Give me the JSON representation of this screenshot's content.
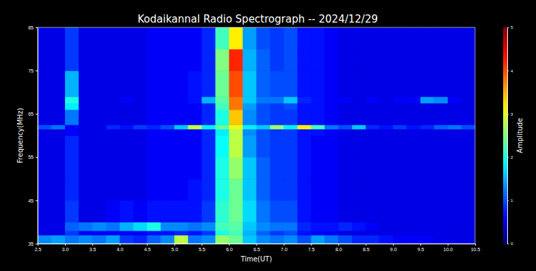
{
  "chart_data": {
    "type": "heatmap",
    "title": "Kodaikannal Radio Spectrograph -- 2024/12/29",
    "x_label": "Time(UT)",
    "y_label": "Frequency(MHz)",
    "xlim": [
      2.5,
      10.5
    ],
    "ylim": [
      35,
      85
    ],
    "xticks": [
      2.5,
      {
        "value": 3,
        "label": "3.0"
      },
      3.5,
      {
        "value": 4,
        "label": "4.0"
      },
      4.5,
      {
        "value": 5,
        "label": "5.0"
      },
      5.5,
      {
        "value": 6,
        "label": "6.0"
      },
      6.5,
      {
        "value": 7,
        "label": "7.0"
      },
      7.5,
      {
        "value": 8,
        "label": "8.0"
      },
      8.5,
      {
        "value": 9,
        "label": "9.0"
      },
      9.5,
      {
        "value": 10,
        "label": "10.0"
      },
      10.5
    ],
    "yticks": [
      35,
      45,
      55,
      65,
      75,
      85
    ],
    "x": [
      2.5,
      2.75,
      3.0,
      3.25,
      3.5,
      3.75,
      4.0,
      4.25,
      4.5,
      4.75,
      5.0,
      5.25,
      5.5,
      5.75,
      6.0,
      6.25,
      6.5,
      6.75,
      7.0,
      7.25,
      7.5,
      7.75,
      8.0,
      8.25,
      8.5,
      8.75,
      9.0,
      9.25,
      9.5,
      9.75,
      10.0,
      10.25,
      10.5
    ],
    "y": [
      35,
      37,
      38,
      40,
      45,
      50,
      55,
      60,
      61.5,
      62.5,
      66,
      67.5,
      69,
      75,
      80,
      85
    ],
    "values": [
      [
        1.3,
        1.4,
        1.2,
        1.3,
        1.2,
        1.4,
        0.9,
        0.8,
        1.1,
        1.3,
        2.8,
        1.2,
        1.3,
        2.6,
        2.4,
        1.6,
        1.3,
        1.2,
        1.3,
        1.0,
        1.4,
        1.2,
        1.0,
        0.8,
        0.8,
        0.7,
        0.6,
        0.6,
        0.6,
        0.5,
        0.5,
        0.5
      ],
      [
        0.5,
        0.5,
        0.9,
        0.6,
        0.6,
        0.6,
        0.6,
        0.6,
        0.7,
        0.7,
        0.8,
        0.7,
        0.9,
        2.0,
        2.2,
        1.5,
        1.1,
        0.9,
        1.0,
        0.7,
        0.6,
        0.6,
        0.5,
        0.5,
        0.5,
        0.5,
        0.5,
        0.5,
        0.5,
        0.5,
        0.5,
        0.5
      ],
      [
        0.5,
        0.5,
        1.1,
        1.2,
        1.3,
        1.2,
        1.5,
        1.7,
        2.0,
        1.3,
        1.3,
        1.2,
        1.3,
        2.2,
        2.3,
        1.6,
        1.3,
        1.2,
        1.2,
        0.8,
        0.7,
        0.7,
        0.8,
        0.7,
        0.6,
        0.5,
        0.5,
        0.5,
        0.5,
        0.5,
        0.5,
        0.5
      ],
      [
        0.5,
        0.5,
        0.9,
        0.5,
        0.5,
        0.6,
        0.7,
        0.6,
        0.7,
        0.7,
        0.7,
        0.7,
        0.9,
        2.1,
        2.4,
        1.7,
        1.2,
        1.0,
        1.0,
        0.7,
        0.6,
        0.6,
        0.5,
        0.5,
        0.5,
        0.5,
        0.5,
        0.5,
        0.5,
        0.5,
        0.5,
        0.5
      ],
      [
        0.5,
        0.5,
        0.8,
        0.5,
        0.5,
        0.5,
        0.5,
        0.5,
        0.6,
        0.6,
        0.6,
        0.7,
        0.8,
        2.0,
        2.4,
        1.6,
        1.1,
        0.9,
        0.9,
        0.7,
        0.6,
        0.6,
        0.5,
        0.5,
        0.5,
        0.5,
        0.5,
        0.5,
        0.5,
        0.5,
        0.5,
        0.5
      ],
      [
        0.5,
        0.5,
        0.8,
        0.5,
        0.5,
        0.5,
        0.5,
        0.5,
        0.6,
        0.6,
        0.6,
        0.6,
        0.8,
        2.0,
        2.6,
        1.6,
        1.1,
        0.9,
        0.9,
        0.7,
        0.6,
        0.6,
        0.5,
        0.5,
        0.5,
        0.5,
        0.5,
        0.5,
        0.5,
        0.5,
        0.5,
        0.5
      ],
      [
        0.5,
        0.5,
        0.8,
        0.5,
        0.5,
        0.5,
        0.5,
        0.5,
        0.6,
        0.6,
        0.6,
        0.6,
        0.8,
        1.9,
        2.8,
        1.4,
        1.0,
        0.9,
        0.9,
        0.7,
        0.6,
        0.6,
        0.5,
        0.5,
        0.5,
        0.5,
        0.5,
        0.5,
        0.5,
        0.5,
        0.5,
        0.5
      ],
      [
        0.5,
        0.5,
        0.6,
        0.5,
        0.5,
        0.5,
        0.5,
        0.5,
        0.6,
        0.6,
        0.6,
        0.6,
        0.8,
        1.8,
        2.8,
        1.3,
        1.0,
        0.9,
        0.9,
        0.7,
        0.7,
        0.6,
        0.5,
        0.5,
        0.5,
        0.5,
        0.5,
        0.5,
        0.5,
        0.5,
        0.5,
        0.5
      ],
      [
        1.0,
        1.2,
        0.6,
        0.5,
        0.5,
        0.8,
        0.7,
        0.9,
        0.8,
        1.0,
        1.6,
        2.8,
        1.8,
        2.4,
        3.0,
        1.8,
        1.6,
        2.6,
        1.8,
        3.2,
        2.2,
        1.2,
        1.0,
        1.6,
        0.8,
        0.7,
        0.9,
        0.7,
        0.8,
        1.1,
        1.2,
        1.0
      ],
      [
        0.5,
        0.5,
        1.2,
        0.5,
        0.5,
        0.5,
        0.5,
        0.5,
        0.6,
        0.6,
        0.6,
        0.6,
        0.8,
        2.0,
        3.4,
        1.3,
        1.0,
        0.9,
        0.9,
        0.7,
        0.7,
        0.6,
        0.5,
        0.5,
        0.5,
        0.5,
        0.5,
        0.5,
        0.5,
        0.5,
        0.5,
        0.5
      ],
      [
        0.5,
        0.5,
        1.8,
        0.5,
        0.5,
        0.5,
        0.5,
        0.5,
        0.6,
        0.6,
        0.6,
        0.6,
        0.8,
        2.2,
        3.8,
        1.4,
        1.0,
        0.9,
        1.0,
        0.7,
        0.7,
        0.6,
        0.5,
        0.5,
        0.5,
        0.5,
        0.5,
        0.5,
        0.5,
        0.5,
        0.5,
        0.5
      ],
      [
        0.5,
        0.5,
        2.0,
        0.5,
        0.5,
        0.5,
        0.6,
        0.5,
        0.6,
        0.6,
        0.6,
        0.7,
        1.5,
        2.3,
        3.8,
        1.6,
        1.2,
        1.2,
        1.6,
        0.8,
        0.7,
        0.6,
        0.6,
        0.5,
        0.6,
        0.5,
        0.6,
        0.6,
        1.4,
        1.3,
        0.6,
        0.5
      ],
      [
        0.5,
        0.5,
        1.5,
        0.5,
        0.5,
        0.5,
        0.5,
        0.5,
        0.6,
        0.6,
        0.6,
        0.7,
        0.8,
        2.4,
        4.0,
        1.6,
        1.1,
        1.0,
        1.0,
        0.7,
        0.7,
        0.6,
        0.5,
        0.5,
        0.5,
        0.5,
        0.5,
        0.5,
        0.5,
        0.5,
        0.5,
        0.5
      ],
      [
        0.5,
        0.5,
        0.9,
        0.5,
        0.5,
        0.5,
        0.5,
        0.5,
        0.6,
        0.6,
        0.6,
        0.6,
        0.8,
        2.5,
        4.2,
        1.5,
        1.1,
        0.9,
        1.0,
        0.7,
        0.7,
        0.6,
        0.5,
        0.5,
        0.5,
        0.5,
        0.5,
        0.5,
        0.5,
        0.5,
        0.5,
        0.5
      ],
      [
        0.5,
        0.5,
        0.9,
        0.5,
        0.5,
        0.5,
        0.5,
        0.5,
        0.6,
        0.6,
        0.6,
        0.6,
        0.8,
        2.2,
        3.2,
        1.4,
        1.0,
        0.9,
        1.0,
        0.7,
        0.7,
        0.6,
        0.5,
        0.5,
        0.5,
        0.5,
        0.5,
        0.5,
        0.5,
        0.5,
        0.5,
        0.5
      ]
    ],
    "colorbar": {
      "label": "Amplitude",
      "range": [
        0,
        5
      ],
      "ticks": [
        0,
        1,
        2,
        3,
        4,
        5
      ]
    }
  }
}
